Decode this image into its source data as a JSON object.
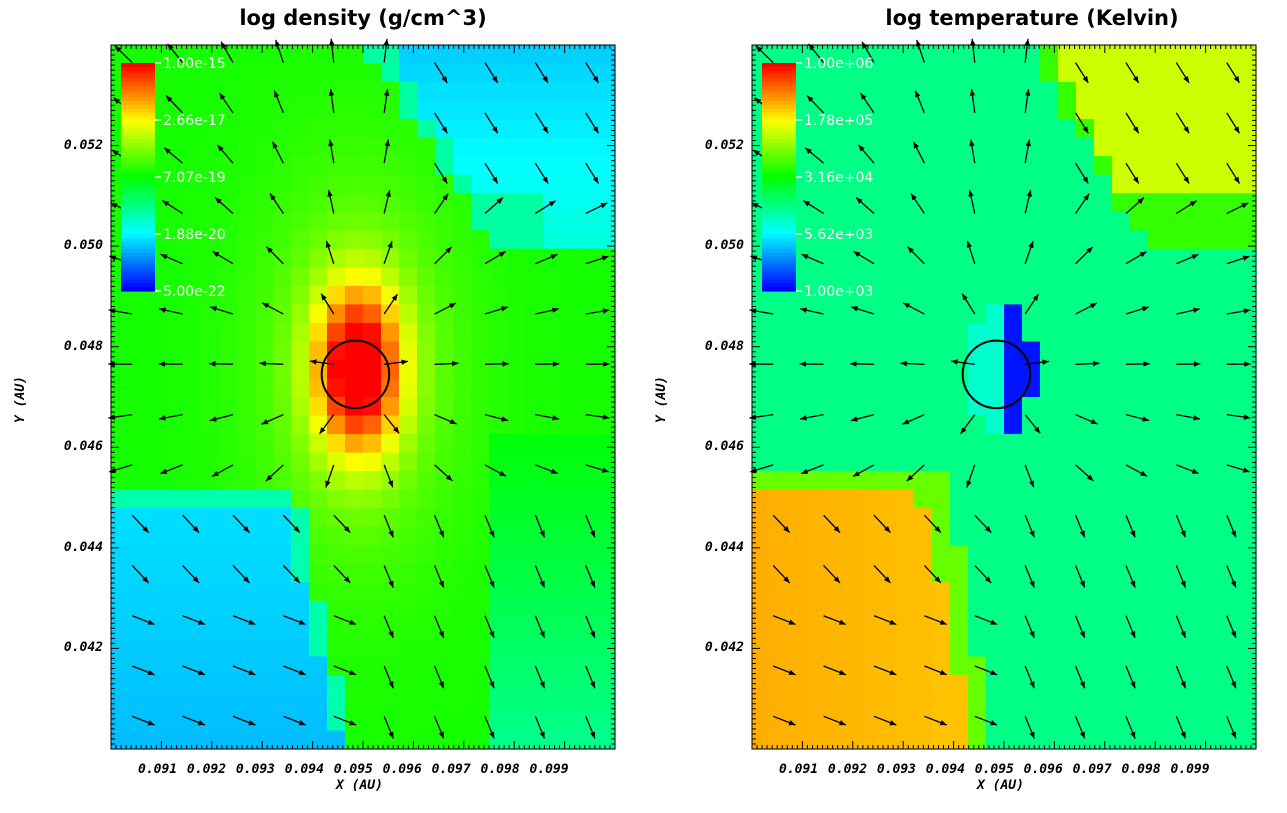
{
  "chart_data": [
    {
      "type": "heatmap",
      "title": "log density (g/cm^3)",
      "xlabel": "X (AU)",
      "ylabel": "Y (AU)",
      "xlim": [
        0.09,
        0.1
      ],
      "ylim": [
        0.04,
        0.054
      ],
      "x_tick_labels": [
        "0.091",
        "0.092",
        "0.093",
        "0.094",
        "0.095",
        "0.096",
        "0.097",
        "0.098",
        "0.099"
      ],
      "y_ticks": [
        0.042,
        0.044,
        0.046,
        0.048,
        0.05,
        0.052
      ],
      "y_tick_labels": [
        "0.042",
        "0.044",
        "0.046",
        "0.048",
        "0.050",
        "0.052"
      ],
      "colorbar": {
        "scale": "log",
        "labels": [
          "1.00e-15",
          "2.66e-17",
          "7.07e-19",
          "1.88e-20",
          "5.00e-22"
        ],
        "min": 5e-22,
        "max": 1e-15
      },
      "overlay": "velocity vectors",
      "circle": {
        "cx": 0.09485,
        "cy": 0.04745,
        "r": 0.00067
      }
    },
    {
      "type": "heatmap",
      "title": "log temperature (Kelvin)",
      "xlabel": "X (AU)",
      "ylabel": "Y (AU)",
      "xlim": [
        0.09,
        0.1
      ],
      "ylim": [
        0.04,
        0.054
      ],
      "x_tick_labels": [
        "0.091",
        "0.092",
        "0.093",
        "0.094",
        "0.095",
        "0.096",
        "0.097",
        "0.098",
        "0.099"
      ],
      "y_ticks": [
        0.042,
        0.044,
        0.046,
        0.048,
        0.05,
        0.052
      ],
      "y_tick_labels": [
        "0.042",
        "0.044",
        "0.046",
        "0.048",
        "0.050",
        "0.052"
      ],
      "colorbar": {
        "scale": "log",
        "labels": [
          "1.00e+06",
          "1.78e+05",
          "3.16e+04",
          "5.62e+03",
          "1.00e+03"
        ],
        "min": 1000.0,
        "max": 1000000.0
      },
      "overlay": "velocity vectors",
      "circle": {
        "cx": 0.09485,
        "cy": 0.04745,
        "r": 0.00067
      }
    }
  ]
}
